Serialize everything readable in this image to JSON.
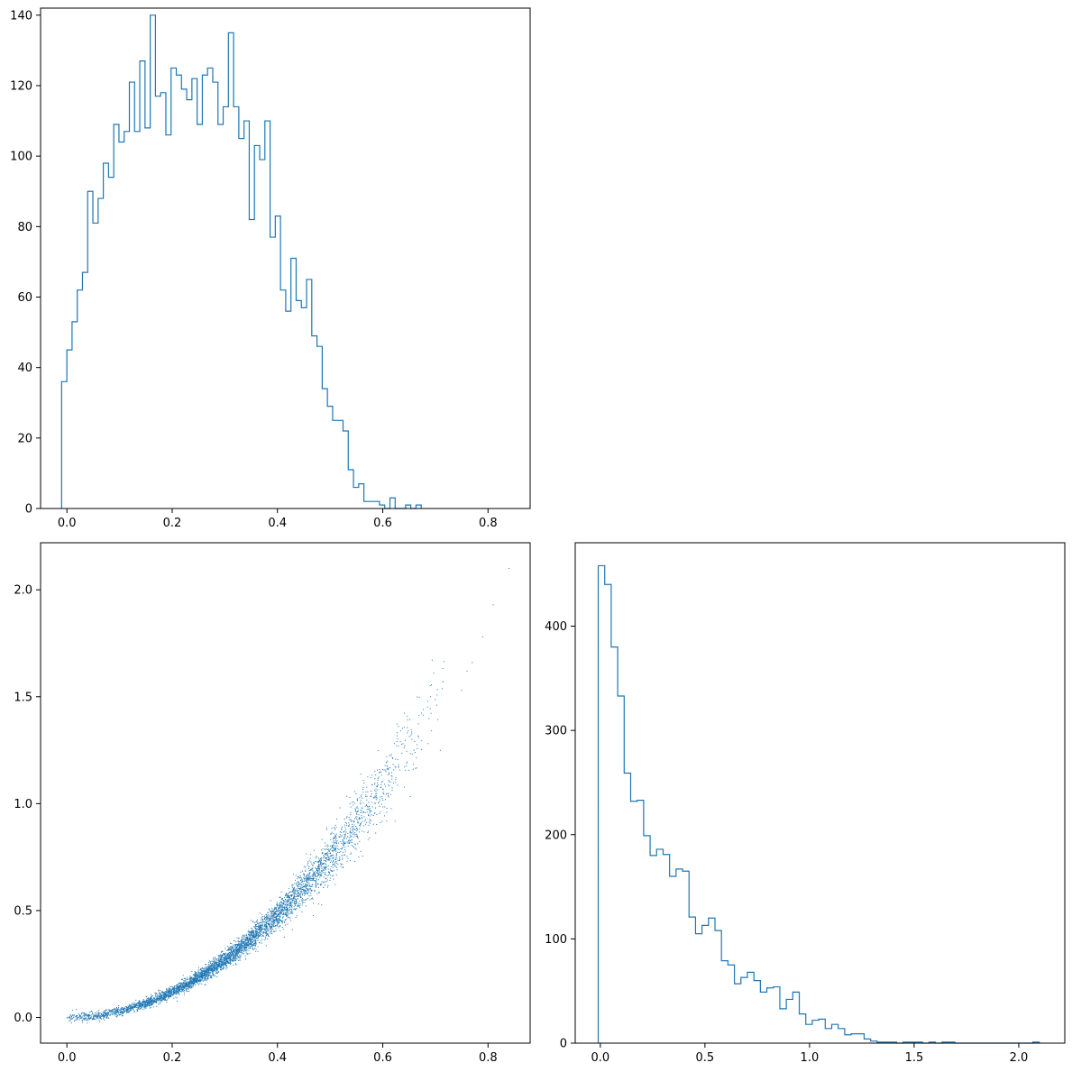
{
  "colors": {
    "series": "#1f77b4",
    "axes": "#000000",
    "background": "#ffffff"
  },
  "chart_data": [
    {
      "type": "histogram",
      "name": "top-left",
      "style": "step",
      "xlim": [
        -0.05,
        0.88
      ],
      "ylim": [
        0,
        142
      ],
      "x_tick_labels": [
        "0.0",
        "0.2",
        "0.4",
        "0.6",
        "0.8"
      ],
      "x_ticks": [
        0.0,
        0.2,
        0.4,
        0.6,
        0.8
      ],
      "y_tick_labels": [
        "0",
        "20",
        "40",
        "60",
        "80",
        "100",
        "120",
        "140"
      ],
      "y_ticks": [
        0,
        20,
        40,
        60,
        80,
        100,
        120,
        140
      ],
      "bin_start": -0.01,
      "bin_width": 0.0099,
      "counts": [
        36,
        45,
        53,
        62,
        67,
        90,
        81,
        88,
        98,
        94,
        109,
        104,
        107,
        121,
        107,
        127,
        108,
        140,
        117,
        118,
        106,
        125,
        123,
        119,
        116,
        122,
        109,
        123,
        125,
        121,
        109,
        114,
        135,
        114,
        105,
        110,
        82,
        103,
        99,
        110,
        77,
        83,
        62,
        56,
        71,
        59,
        57,
        65,
        49,
        46,
        34,
        29,
        25,
        25,
        22,
        11,
        6,
        7,
        2,
        2,
        2,
        1,
        0,
        3,
        0,
        0,
        1,
        0,
        1
      ]
    },
    {
      "type": "scatter",
      "name": "bottom-left",
      "xlim": [
        -0.05,
        0.88
      ],
      "ylim": [
        -0.12,
        2.22
      ],
      "x_tick_labels": [
        "0.0",
        "0.2",
        "0.4",
        "0.6",
        "0.8"
      ],
      "x_ticks": [
        0.0,
        0.2,
        0.4,
        0.6,
        0.8
      ],
      "y_tick_labels": [
        "0.0",
        "0.5",
        "1.0",
        "1.5",
        "2.0"
      ],
      "y_ticks": [
        0.0,
        0.5,
        1.0,
        1.5,
        2.0
      ],
      "relation": "y ≈ 3·x² (thin band, ~5000 points, x from 0.0 to 0.84)",
      "point_count": 5000,
      "outliers": [
        [
          0.75,
          1.53
        ],
        [
          0.76,
          1.62
        ],
        [
          0.77,
          1.66
        ],
        [
          0.79,
          1.78
        ],
        [
          0.81,
          1.93
        ],
        [
          0.84,
          2.1
        ]
      ]
    },
    {
      "type": "histogram",
      "name": "bottom-right",
      "style": "step",
      "xlim": [
        -0.12,
        2.22
      ],
      "ylim": [
        0,
        480
      ],
      "x_tick_labels": [
        "0.0",
        "0.5",
        "1.0",
        "1.5",
        "2.0"
      ],
      "x_ticks": [
        0.0,
        0.5,
        1.0,
        1.5,
        2.0
      ],
      "y_tick_labels": [
        "0",
        "100",
        "200",
        "300",
        "400"
      ],
      "y_ticks": [
        0,
        100,
        200,
        300,
        400
      ],
      "bin_start": -0.01,
      "bin_width": 0.031,
      "counts": [
        458,
        440,
        380,
        333,
        259,
        232,
        233,
        199,
        180,
        186,
        181,
        160,
        167,
        165,
        121,
        105,
        113,
        120,
        108,
        79,
        75,
        57,
        63,
        68,
        60,
        49,
        53,
        54,
        33,
        42,
        49,
        28,
        18,
        22,
        23,
        14,
        18,
        14,
        8,
        9,
        9,
        4,
        2,
        1,
        1,
        1,
        0,
        1,
        1,
        1,
        0,
        1,
        0,
        1,
        1,
        0,
        0,
        0,
        0,
        0,
        0,
        0,
        0,
        0,
        0,
        0,
        0,
        1
      ]
    }
  ]
}
